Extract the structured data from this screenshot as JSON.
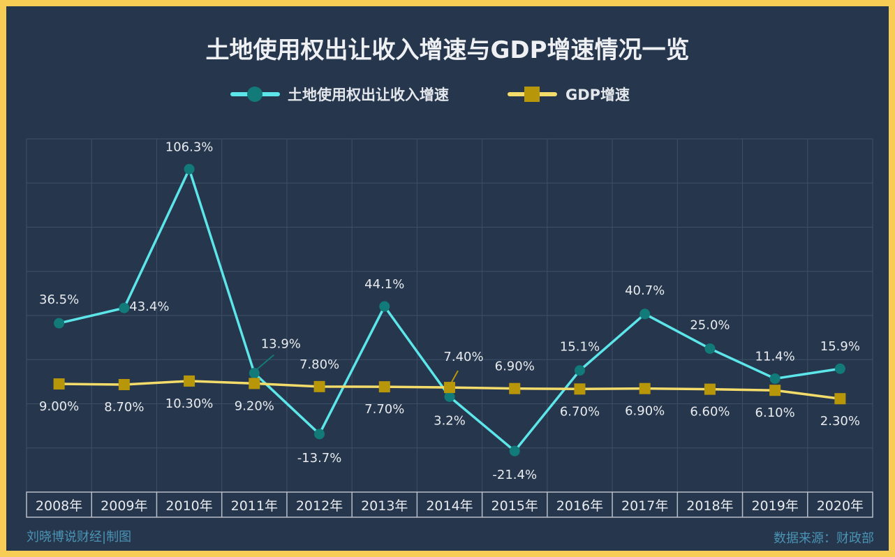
{
  "title": "土地使用权出让收入增速与GDP增速情况一览",
  "credit": "刘晓博说财经|制图",
  "source": "数据来源：财政部",
  "chart_data": {
    "type": "line",
    "title": "土地使用权出让收入增速与GDP增速情况一览",
    "categories": [
      "2008年",
      "2009年",
      "2010年",
      "2011年",
      "2012年",
      "2013年",
      "2014年",
      "2015年",
      "2016年",
      "2017年",
      "2018年",
      "2019年",
      "2020年"
    ],
    "ylim": [
      -40,
      120
    ],
    "grid": true,
    "legend": "top",
    "series": [
      {
        "name": "土地使用权出让收入增速",
        "color": "#5ce6ea",
        "marker_color": "#127a78",
        "marker": "circle",
        "values": [
          36.5,
          43.4,
          106.3,
          13.9,
          -13.7,
          44.1,
          3.2,
          -21.4,
          15.1,
          40.7,
          25.0,
          11.4,
          15.9
        ],
        "labels": [
          "36.5%",
          "43.4%",
          "106.3%",
          "13.9%",
          "-13.7%",
          "44.1%",
          "3.2%",
          "-21.4%",
          "15.1%",
          "40.7%",
          "25.0%",
          "11.4%",
          "15.9%"
        ]
      },
      {
        "name": "GDP增速",
        "color": "#f4dc6a",
        "marker_color": "#b8960a",
        "marker": "square",
        "values": [
          9.0,
          8.7,
          10.3,
          9.2,
          7.8,
          7.7,
          7.4,
          6.9,
          6.7,
          6.9,
          6.6,
          6.1,
          2.3
        ],
        "labels": [
          "9.00%",
          "8.70%",
          "10.30%",
          "9.20%",
          "7.80%",
          "7.70%",
          "7.40%",
          "6.90%",
          "6.70%",
          "6.90%",
          "6.60%",
          "6.10%",
          "2.30%"
        ]
      }
    ]
  }
}
